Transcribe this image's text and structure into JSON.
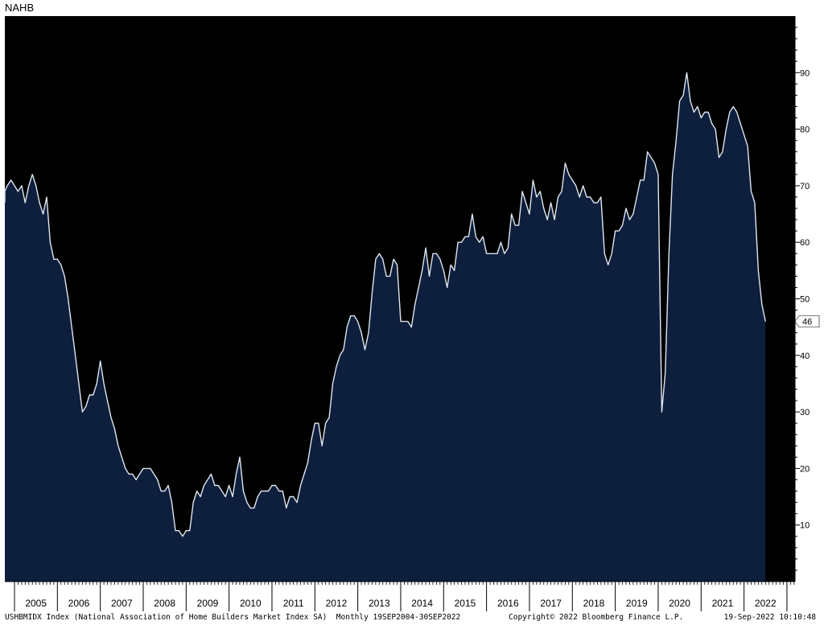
{
  "chart_data": {
    "type": "area",
    "title": "NAHB",
    "x_years": [
      "2005",
      "2006",
      "2007",
      "2008",
      "2009",
      "2010",
      "2011",
      "2012",
      "2013",
      "2014",
      "2015",
      "2016",
      "2017",
      "2018",
      "2019",
      "2020",
      "2021",
      "2022"
    ],
    "y_ticks": [
      10,
      20,
      30,
      40,
      50,
      60,
      70,
      80,
      90
    ],
    "ylim": [
      0,
      100
    ],
    "last_value_label": "46",
    "series": [
      {
        "start": "2004-09",
        "frequency": "monthly",
        "values": [
          67,
          69,
          70,
          71,
          70,
          69,
          70,
          67,
          70,
          72,
          70,
          67,
          65,
          68,
          60,
          57,
          57,
          56,
          54,
          50,
          45,
          40,
          35,
          30,
          31,
          33,
          33,
          35,
          39,
          35,
          32,
          29,
          27,
          24,
          22,
          20,
          19,
          19,
          18,
          19,
          20,
          20,
          20,
          19,
          18,
          16,
          16,
          17,
          14,
          9,
          9,
          8,
          9,
          9,
          14,
          16,
          15,
          17,
          18,
          19,
          17,
          17,
          16,
          15,
          17,
          15,
          19,
          22,
          16,
          14,
          13,
          13,
          15,
          16,
          16,
          16,
          17,
          17,
          16,
          16,
          13,
          15,
          15,
          14,
          17,
          19,
          21,
          25,
          28,
          28,
          24,
          28,
          29,
          35,
          38,
          40,
          41,
          45,
          47,
          47,
          46,
          44,
          41,
          44,
          51,
          57,
          58,
          57,
          54,
          54,
          57,
          56,
          46,
          46,
          46,
          45,
          49,
          52,
          55,
          59,
          54,
          58,
          58,
          57,
          55,
          52,
          56,
          55,
          60,
          60,
          61,
          61,
          65,
          61,
          60,
          61,
          58,
          58,
          58,
          58,
          60,
          58,
          59,
          65,
          63,
          63,
          69,
          67,
          65,
          71,
          68,
          69,
          66,
          64,
          67,
          64,
          68,
          69,
          74,
          72,
          71,
          70,
          68,
          70,
          68,
          68,
          67,
          67,
          68,
          58,
          56,
          58,
          62,
          62,
          63,
          66,
          64,
          65,
          68,
          71,
          71,
          76,
          75,
          74,
          72,
          30,
          37,
          58,
          72,
          78,
          85,
          86,
          90,
          85,
          83,
          84,
          82,
          83,
          83,
          81,
          80,
          75,
          76,
          80,
          83,
          84,
          83,
          81,
          79,
          77,
          69,
          67,
          55,
          49,
          46
        ]
      }
    ]
  },
  "footer": {
    "left": "USHBMIDX Index (National Association of Home Builders Market Index SA)  Monthly 19SEP2004-30SEP2022",
    "center": "Copyright© 2022 Bloomberg Finance L.P.",
    "right": "19-Sep-2022 10:10:48"
  },
  "colors": {
    "plot_bg": "#000000",
    "area_fill": "#0e1f3d",
    "line": "#dfe6f0",
    "axis_panel_bg": "#ffffff",
    "grid_text": "#000000"
  }
}
